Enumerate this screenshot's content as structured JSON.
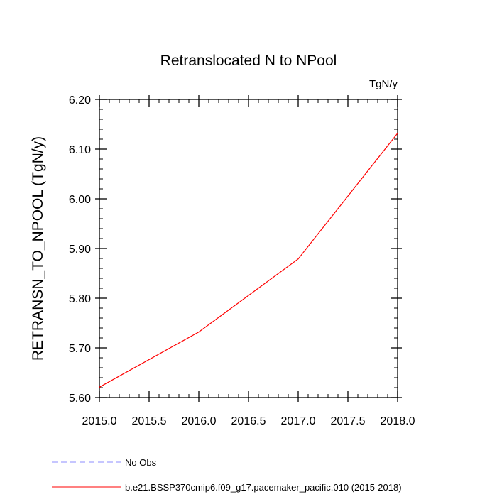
{
  "chart_data": {
    "type": "line",
    "title": "Retranslocated N to NPool",
    "units": "TgN/y",
    "xlabel": "",
    "ylabel": "RETRANSN_TO_NPOOL  (TgN/y)",
    "xlim": [
      2015.0,
      2018.0
    ],
    "ylim": [
      5.6,
      6.2
    ],
    "x_major_ticks": [
      2015.0,
      2015.5,
      2016.0,
      2016.5,
      2017.0,
      2017.5,
      2018.0
    ],
    "x_tick_labels": [
      "2015.0",
      "2015.5",
      "2016.0",
      "2016.5",
      "2017.0",
      "2017.5",
      "2018.0"
    ],
    "x_minor_step": 0.1,
    "y_major_ticks": [
      5.6,
      5.7,
      5.8,
      5.9,
      6.0,
      6.1,
      6.2
    ],
    "y_tick_labels": [
      "5.60",
      "5.70",
      "5.80",
      "5.90",
      "6.00",
      "6.10",
      "6.20"
    ],
    "y_minor_step": 0.02,
    "grid": false,
    "legend_position": "bottom-left",
    "series": [
      {
        "name": "b.e21.BSSP370cmip6.f09_g17.pacemaker_pacific.010 (2015-2018)",
        "color": "#ff0000",
        "dash": "solid",
        "x": [
          2015.0,
          2016.0,
          2017.0,
          2018.0
        ],
        "values": [
          5.621,
          5.732,
          5.879,
          6.132
        ]
      }
    ],
    "legend": [
      {
        "label": "No Obs",
        "color": "#8c8cff",
        "dash": "dashed"
      },
      {
        "label": "b.e21.BSSP370cmip6.f09_g17.pacemaker_pacific.010 (2015-2018)",
        "color": "#ff0000",
        "dash": "solid"
      }
    ]
  }
}
